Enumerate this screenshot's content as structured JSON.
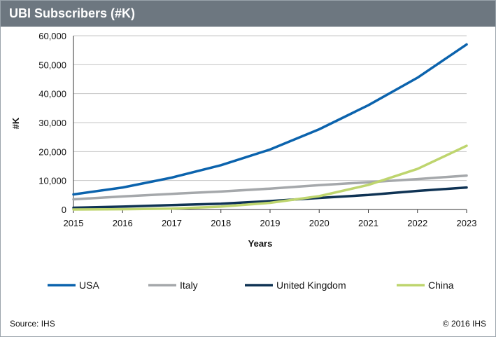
{
  "header": {
    "title": "UBI Subscribers (#K)"
  },
  "footer": {
    "source": "Source: IHS",
    "copyright": "© 2016 IHS"
  },
  "chart_data": {
    "type": "line",
    "title": "UBI Subscribers (#K)",
    "xlabel": "Years",
    "ylabel": "#K",
    "x": [
      "2015",
      "2016",
      "2017",
      "2018",
      "2019",
      "2020",
      "2021",
      "2022",
      "2023"
    ],
    "ylim": [
      0,
      60000
    ],
    "yticks": [
      0,
      10000,
      20000,
      30000,
      40000,
      50000,
      60000
    ],
    "ytick_labels": [
      "0",
      "10,000",
      "20,000",
      "30,000",
      "40,000",
      "50,000",
      "60,000"
    ],
    "grid": "horizontal",
    "legend": "bottom",
    "series": [
      {
        "name": "USA",
        "color": "#0b63ad",
        "values": [
          5200,
          7600,
          11000,
          15300,
          20700,
          27700,
          36000,
          45500,
          57000
        ]
      },
      {
        "name": "Italy",
        "color": "#a5a8ab",
        "values": [
          3500,
          4500,
          5400,
          6200,
          7200,
          8400,
          9400,
          10500,
          11700
        ]
      },
      {
        "name": "United Kingdom",
        "color": "#0f3354",
        "values": [
          600,
          1000,
          1500,
          2000,
          2900,
          4000,
          5000,
          6400,
          7600
        ]
      },
      {
        "name": "China",
        "color": "#bed56e",
        "values": [
          0,
          100,
          300,
          1000,
          2300,
          4600,
          8500,
          14000,
          22000
        ]
      }
    ]
  }
}
